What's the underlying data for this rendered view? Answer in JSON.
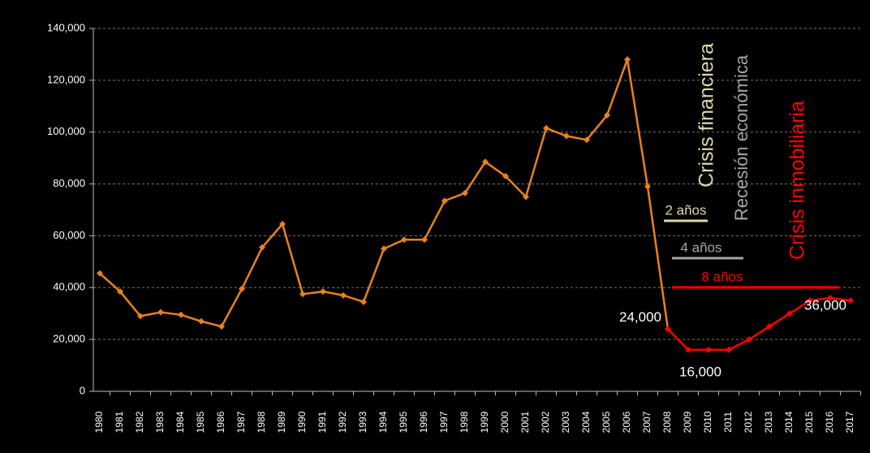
{
  "chart_data": {
    "type": "line",
    "categories": [
      "1980",
      "1981",
      "1982",
      "1983",
      "1984",
      "1985",
      "1986",
      "1987",
      "1988",
      "1989",
      "1990",
      "1991",
      "1992",
      "1993",
      "1994",
      "1995",
      "1996",
      "1997",
      "1998",
      "1999",
      "2000",
      "2001",
      "2002",
      "2003",
      "2004",
      "2005",
      "2006",
      "2007",
      "2008",
      "2009",
      "2010",
      "2011",
      "2012",
      "2013",
      "2014",
      "2015",
      "2016",
      "2017"
    ],
    "series": [
      {
        "color": "#e8821e",
        "values": [
          45500,
          38500,
          29000,
          30500,
          29500,
          27000,
          25000,
          39500,
          55500,
          64500,
          37500,
          38500,
          37000,
          34500,
          55000,
          58500,
          58500,
          73500,
          76500,
          88500,
          83000,
          75000,
          101500,
          98500,
          97000,
          106500,
          128000,
          79000,
          24000,
          null,
          null,
          null,
          null,
          null,
          null,
          null,
          null,
          null
        ]
      },
      {
        "color": "#ff0000",
        "values": [
          null,
          null,
          null,
          null,
          null,
          null,
          null,
          null,
          null,
          null,
          null,
          null,
          null,
          null,
          null,
          null,
          null,
          null,
          null,
          null,
          null,
          null,
          null,
          null,
          null,
          null,
          null,
          null,
          24000,
          16000,
          16000,
          16000,
          20000,
          25000,
          30000,
          35000,
          36000,
          35000
        ],
        "value_labels": [
          null,
          null,
          null,
          null,
          null,
          null,
          null,
          null,
          null,
          null,
          null,
          null,
          null,
          null,
          null,
          null,
          null,
          null,
          null,
          null,
          null,
          null,
          null,
          null,
          null,
          null,
          null,
          null,
          "24,000",
          null,
          "16,000",
          null,
          null,
          null,
          null,
          null,
          "36,000",
          null
        ]
      }
    ],
    "ylim": [
      0,
      140000
    ],
    "yticks": [
      0,
      {
        "value": 20000,
        "label": "20,000"
      },
      {
        "value": 40000,
        "label": "40,000"
      },
      {
        "value": 60000,
        "label": "60,000"
      },
      {
        "value": 80000,
        "label": "80,000"
      },
      {
        "value": 100000,
        "label": "100,000"
      },
      {
        "value": 120000,
        "label": "120,000"
      },
      {
        "value": 140000,
        "label": "140,000"
      }
    ],
    "grid": true,
    "annotations": [
      {
        "text": "Crisis financiera",
        "color": "#ded6ae"
      },
      {
        "text": "Recesión económica",
        "color": "#a6a6a6"
      },
      {
        "text": "Crisis inmobiliaria",
        "color": "#ff0000"
      },
      {
        "text": "2 años",
        "color": "#ded6ae"
      },
      {
        "text": "4 años",
        "color": "#a6a6a6"
      },
      {
        "text": "8 años",
        "color": "#ff0000"
      }
    ]
  }
}
